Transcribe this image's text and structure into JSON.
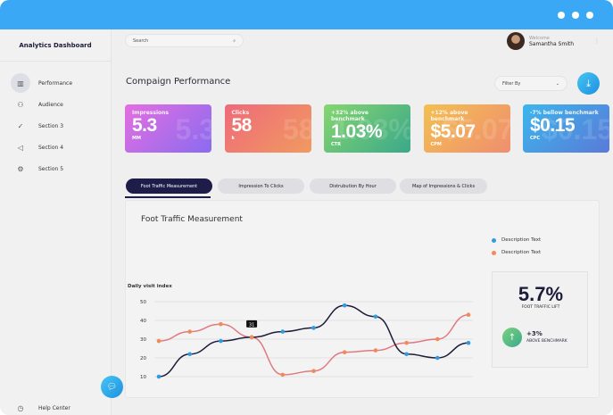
{
  "sidebar": {
    "title": "Analytics Dashboard",
    "items": [
      {
        "label": "Performance",
        "icon": "bar-chart-icon"
      },
      {
        "label": "Audience",
        "icon": "users-icon"
      },
      {
        "label": "Section 3",
        "icon": "check-icon"
      },
      {
        "label": "Section 4",
        "icon": "megaphone-icon"
      },
      {
        "label": "Section 5",
        "icon": "gear-icon"
      }
    ],
    "help": "Help Center"
  },
  "header": {
    "search_placeholder": "Search",
    "welcome": "Welcome",
    "user": "Samantha Smith"
  },
  "page": {
    "title": "Compaign Performance",
    "filter": "Filter By"
  },
  "cards": [
    {
      "label": "Impressions",
      "value": "5.3",
      "unit": "MM",
      "colors": [
        "#e46ee0",
        "#8a6cf0"
      ]
    },
    {
      "label": "Clicks",
      "value": "58",
      "unit": "k",
      "colors": [
        "#ee6a7a",
        "#f19a60"
      ]
    },
    {
      "label": "+32% above benchmark",
      "value": "1.03%",
      "unit": "CTR",
      "colors": [
        "#86d66f",
        "#3aa88a"
      ]
    },
    {
      "label": "+12% above benchmark",
      "value": "$5.07",
      "unit": "CPM",
      "colors": [
        "#f3c050",
        "#f08e70"
      ]
    },
    {
      "label": "-7% bellow benchmark",
      "value": "$0.15",
      "unit": "CPC",
      "colors": [
        "#3cb6ec",
        "#5a7ad8"
      ]
    }
  ],
  "tabs": [
    "Foot Traffic Measurement",
    "Impression To Clicks",
    "Distrubution By Hour",
    "Map of Impressions & Clicks"
  ],
  "stat": {
    "value": "5.7%",
    "label": "FOOT TRAFFIC LIFT",
    "change": "+3%",
    "change_label": "ABOVE BENCHMARK"
  },
  "chart_data": {
    "type": "line",
    "title": "Foot Traffic Measurement",
    "ylabel": "Daily visit index",
    "x": [
      1,
      2,
      3,
      4,
      5,
      6,
      7,
      8,
      9,
      10,
      11
    ],
    "ylim": [
      0,
      50
    ],
    "yticks": [
      0,
      10,
      20,
      30,
      40,
      50
    ],
    "series": [
      {
        "name": "Description Text",
        "color": "#2f9be0",
        "line": "#1e1c3a",
        "values": [
          10,
          22,
          29,
          31,
          34,
          36,
          48,
          42,
          22,
          20,
          28
        ]
      },
      {
        "name": "Description Text",
        "color": "#f08a5a",
        "line": "#e07a82",
        "values": [
          29,
          34,
          38,
          31,
          11,
          13,
          23,
          24,
          28,
          30,
          43
        ]
      }
    ],
    "tooltip": {
      "x": 4,
      "label": "31"
    }
  }
}
